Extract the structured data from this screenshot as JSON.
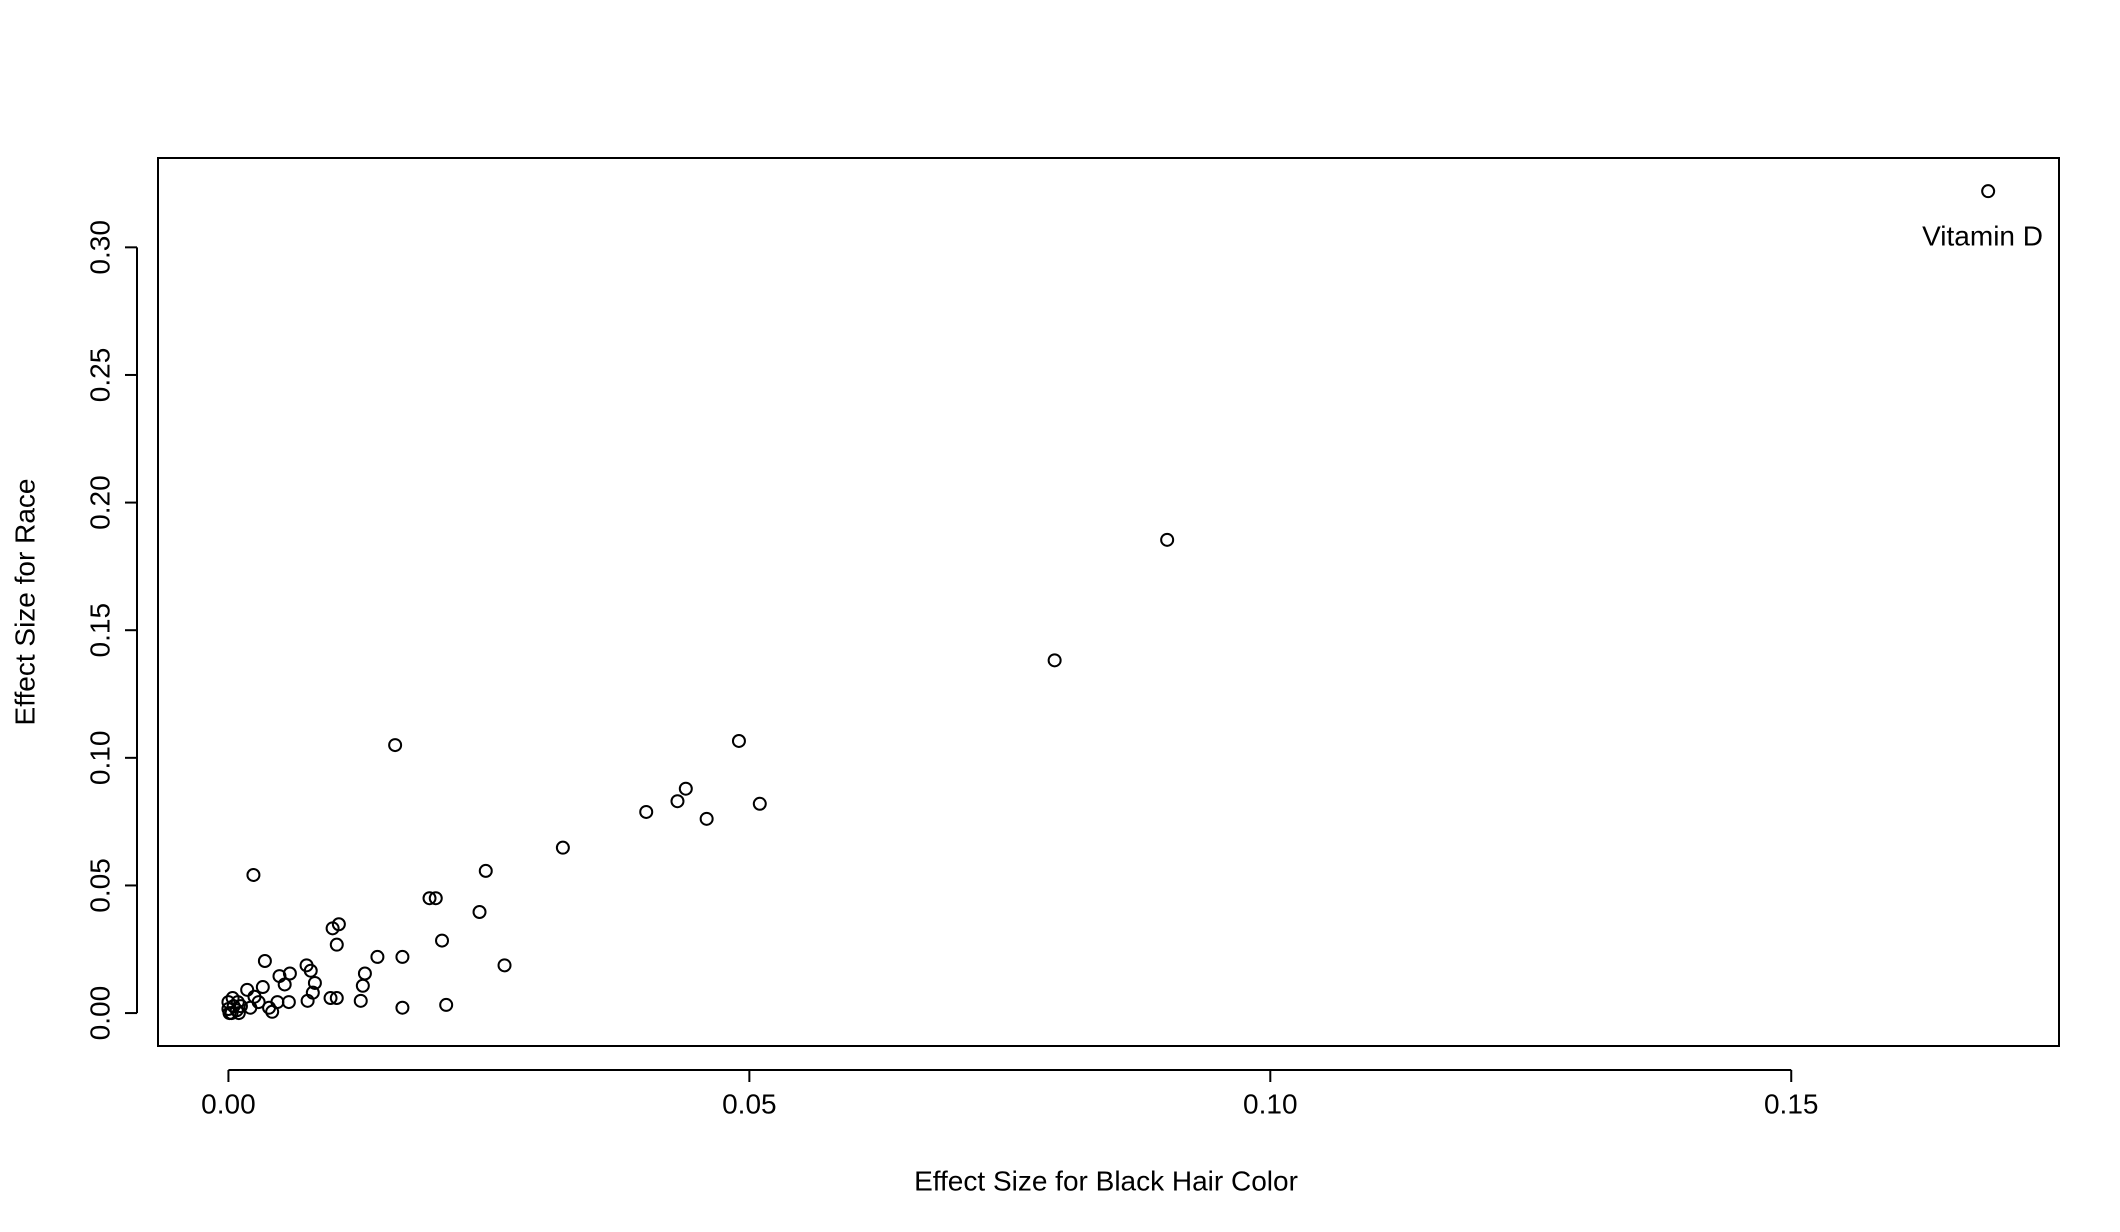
{
  "chart_data": {
    "type": "scatter",
    "xlabel": "Effect Size for Black Hair Color",
    "ylabel": "Effect Size for Race",
    "annotation": "Vitamin D",
    "color": "#000000",
    "x": [
      0.1689,
      0.0901,
      0.0793,
      0.016,
      0.049,
      0.0401,
      0.0431,
      0.0439,
      0.0459,
      0.051,
      0.0321,
      0.0024,
      0.0247,
      0.0193,
      0.0199,
      0.0241,
      0.0205,
      0.0265,
      0.01,
      0.0106,
      0.0104,
      0.0143,
      0.0167,
      0.0131,
      0.0129,
      0.0127,
      0.0167,
      0.0209,
      0.0098,
      0.0104,
      0.0035,
      0.0075,
      0.0079,
      0.0049,
      0.0059,
      0.0054,
      0.0083,
      0.0081,
      0.0076,
      0.0058,
      0.0033,
      0.0018,
      0.0025,
      0.0029,
      0.0047,
      0.0042,
      0.0039,
      0.0021,
      0.0009,
      0.0004,
      0.0,
      0.0,
      0.0003,
      0.0008,
      0.0012,
      0.0005,
      0.0001,
      0.001
    ],
    "values": [
      0.322,
      0.1854,
      0.1382,
      0.105,
      0.1066,
      0.0788,
      0.083,
      0.0879,
      0.0761,
      0.082,
      0.0648,
      0.0541,
      0.0557,
      0.045,
      0.045,
      0.0396,
      0.0284,
      0.0187,
      0.0332,
      0.0348,
      0.0268,
      0.022,
      0.022,
      0.0155,
      0.0107,
      0.0048,
      0.0021,
      0.0032,
      0.0059,
      0.0059,
      0.0204,
      0.0187,
      0.0166,
      0.0145,
      0.0155,
      0.0112,
      0.0118,
      0.008,
      0.0048,
      0.0043,
      0.0102,
      0.0091,
      0.0064,
      0.0043,
      0.0043,
      0.0005,
      0.0021,
      0.0021,
      0.0043,
      0.0059,
      0.0043,
      0.0016,
      0.0,
      0.0011,
      0.0027,
      0.0027,
      0.0,
      0.0
    ],
    "xlim": [
      -0.00676,
      0.1757
    ],
    "ylim": [
      -0.0129,
      0.335
    ],
    "xticks": [
      {
        "value": 0,
        "label": "0.00"
      },
      {
        "value": 0.05,
        "label": "0.05"
      },
      {
        "value": 0.1,
        "label": "0.10"
      },
      {
        "value": 0.15,
        "label": "0.15"
      }
    ],
    "yticks": [
      {
        "value": 0,
        "label": "0.00"
      },
      {
        "value": 0.05,
        "label": "0.05"
      },
      {
        "value": 0.1,
        "label": "0.10"
      },
      {
        "value": 0.15,
        "label": "0.15"
      },
      {
        "value": 0.2,
        "label": "0.20"
      },
      {
        "value": 0.25,
        "label": "0.25"
      },
      {
        "value": 0.3,
        "label": "0.30"
      }
    ],
    "grid": false
  }
}
